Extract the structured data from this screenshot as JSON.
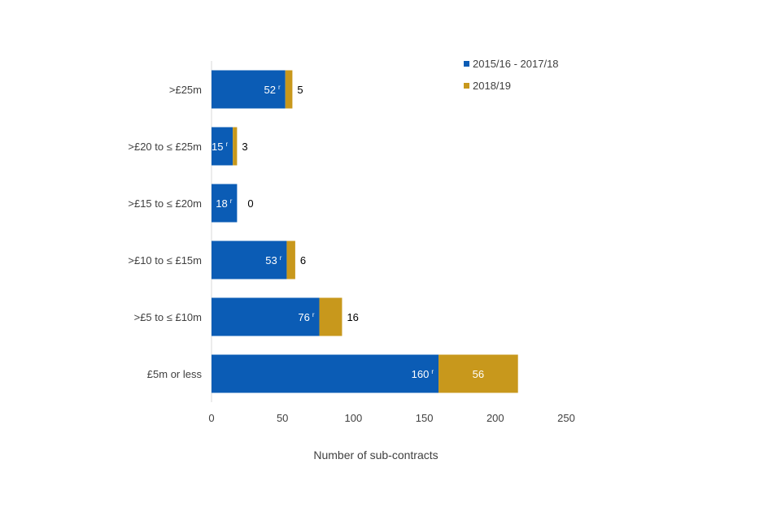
{
  "chart_data": {
    "type": "bar",
    "orientation": "horizontal",
    "stacked": true,
    "categories": [
      ">£25m",
      ">£20 to ≤ £25m",
      ">£15 to ≤ £20m",
      ">£10 to ≤ £15m",
      ">£5 to ≤ £10m",
      "£5m or less"
    ],
    "series": [
      {
        "name": "2015/16 - 2017/18",
        "values": [
          52,
          15,
          18,
          53,
          76,
          160
        ],
        "labels": [
          "52",
          "15",
          "18",
          "53",
          "76",
          "160"
        ],
        "revised": true,
        "color": "#0b5cb5"
      },
      {
        "name": "2018/19",
        "values": [
          5,
          3,
          0,
          6,
          16,
          56
        ],
        "labels": [
          "5",
          "3",
          "0",
          "6",
          "16",
          "56"
        ],
        "color": "#c8981c"
      }
    ],
    "revised_marker": "r",
    "xlabel": "Number  of sub-contracts",
    "xlim": [
      0,
      250
    ],
    "xticks": [
      "0",
      "50",
      "100",
      "150",
      "200",
      "250"
    ],
    "grid": false,
    "legend_position": "top-right"
  }
}
